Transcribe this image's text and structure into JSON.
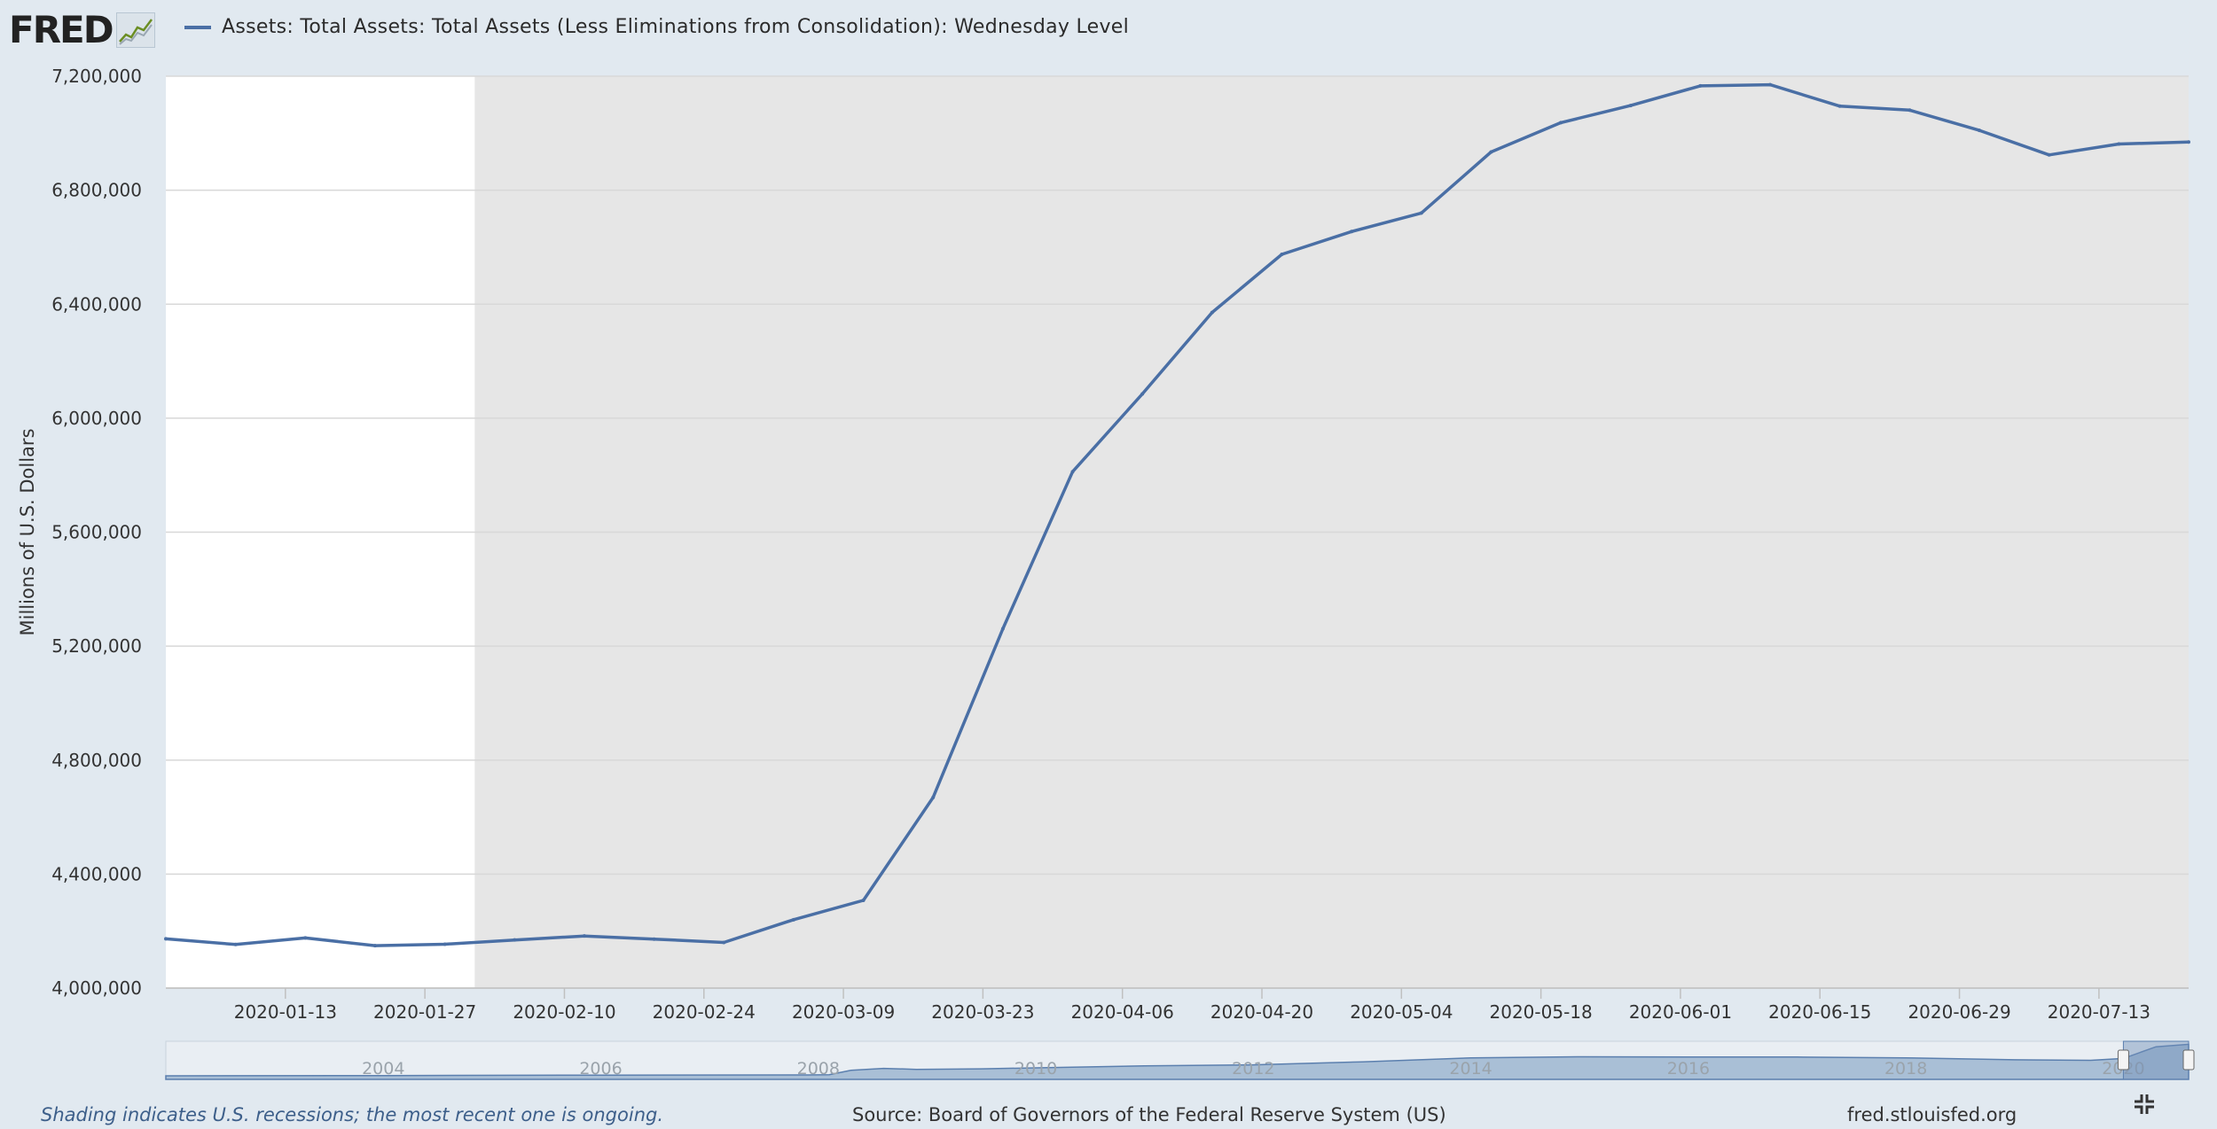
{
  "header": {
    "logo_text": "FRED",
    "logo_icon": "line-graph-icon",
    "series_title": "Assets: Total Assets: Total Assets (Less Eliminations from Consolidation): Wednesday Level"
  },
  "footer": {
    "recession_note": "Shading indicates U.S. recessions; the most recent one is ongoing.",
    "source": "Source: Board of Governors of the Federal Reserve System (US)",
    "url": "fred.stlouisfed.org",
    "fullscreen_icon": "collapse-fullscreen-icon"
  },
  "colors": {
    "line": "#4a6fa5",
    "recession_shade": "#e6e6e6",
    "plot_background": "#ffffff",
    "page_background": "#e1e9f0",
    "navigator_fill": "#a9bfd6",
    "navigator_selection": "#6f8fb8"
  },
  "chart_data": {
    "type": "line",
    "title": "Assets: Total Assets: Total Assets (Less Eliminations from Consolidation): Wednesday Level",
    "ylabel": "Millions of U.S. Dollars",
    "xlabel": "",
    "ylim": [
      4000000,
      7200000
    ],
    "yticks": [
      4000000,
      4400000,
      4800000,
      5200000,
      5600000,
      6000000,
      6400000,
      6800000,
      7200000
    ],
    "ytick_labels": [
      "4,000,000",
      "4,400,000",
      "4,800,000",
      "5,200,000",
      "5,600,000",
      "6,000,000",
      "6,400,000",
      "6,800,000",
      "7,200,000"
    ],
    "xticks": [
      "2020-01-13",
      "2020-01-27",
      "2020-02-10",
      "2020-02-24",
      "2020-03-09",
      "2020-03-23",
      "2020-04-06",
      "2020-04-20",
      "2020-05-04",
      "2020-05-18",
      "2020-06-01",
      "2020-06-15",
      "2020-06-29",
      "2020-07-13"
    ],
    "xlim": [
      "2020-01-01",
      "2020-07-22"
    ],
    "grid": true,
    "recession_shading": [
      {
        "start": "2020-02-01",
        "end": "2020-07-22"
      }
    ],
    "series": [
      {
        "name": "Assets: Total Assets: Total Assets (Less Eliminations from Consolidation): Wednesday Level",
        "x": [
          "2020-01-01",
          "2020-01-08",
          "2020-01-15",
          "2020-01-22",
          "2020-01-29",
          "2020-02-05",
          "2020-02-12",
          "2020-02-19",
          "2020-02-26",
          "2020-03-04",
          "2020-03-11",
          "2020-03-18",
          "2020-03-25",
          "2020-04-01",
          "2020-04-08",
          "2020-04-15",
          "2020-04-22",
          "2020-04-29",
          "2020-05-06",
          "2020-05-13",
          "2020-05-20",
          "2020-05-27",
          "2020-06-03",
          "2020-06-10",
          "2020-06-17",
          "2020-06-24",
          "2020-07-01",
          "2020-07-08",
          "2020-07-15",
          "2020-07-22"
        ],
        "y": [
          4173000,
          4153000,
          4176000,
          4149000,
          4154000,
          4169000,
          4183000,
          4172000,
          4160000,
          4240000,
          4308000,
          4669000,
          5261000,
          5812000,
          6085000,
          6371000,
          6575000,
          6655000,
          6720000,
          6934000,
          7037000,
          7097000,
          7166000,
          7170000,
          7095000,
          7081000,
          7010000,
          6924000,
          6962000,
          6969000
        ]
      }
    ],
    "navigator": {
      "year_labels": [
        "2004",
        "2006",
        "2008",
        "2010",
        "2012",
        "2014",
        "2016",
        "2018",
        "2020"
      ],
      "x_years": [
        2002.0,
        2004.0,
        2006.0,
        2007.9,
        2008.1,
        2008.3,
        2008.6,
        2008.9,
        2009.5,
        2010.0,
        2011.0,
        2012.0,
        2013.0,
        2014.0,
        2015.0,
        2016.0,
        2017.0,
        2018.0,
        2019.0,
        2019.7,
        2020.0,
        2020.3,
        2020.6
      ],
      "y": [
        700000,
        760000,
        850000,
        890000,
        940000,
        1800000,
        2200000,
        2000000,
        2100000,
        2300000,
        2700000,
        2900000,
        3500000,
        4300000,
        4500000,
        4450000,
        4450000,
        4300000,
        3900000,
        3800000,
        4170000,
        6500000,
        7000000
      ]
    }
  }
}
